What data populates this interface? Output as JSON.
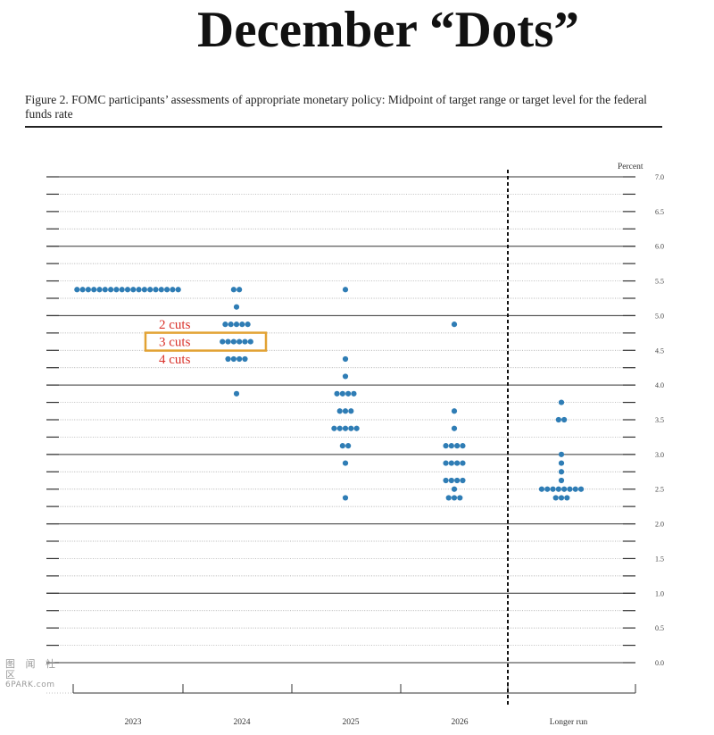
{
  "headline": "December “Dots”",
  "caption": "Figure 2.  FOMC participants’ assessments of appropriate monetary policy:  Midpoint of target range or target level for the federal funds rate",
  "watermark": {
    "glyphs": "图 闻 社 区",
    "site": "6PARK.com"
  },
  "annotations": [
    {
      "label": "2 cuts",
      "y": 4.875,
      "boxed": false
    },
    {
      "label": "3 cuts",
      "y": 4.625,
      "boxed": true
    },
    {
      "label": "4 cuts",
      "y": 4.375,
      "boxed": false
    }
  ],
  "colors": {
    "dot": "#2f7db5",
    "annotation_text": "#d9322b",
    "annotation_box": "#e2a233",
    "axis": "#222222"
  },
  "chart_data": {
    "type": "scatter",
    "ylabel": "Percent",
    "ylim": [
      0,
      7
    ],
    "yticks": [
      "0.0",
      "0.5",
      "1.0",
      "1.5",
      "2.0",
      "2.5",
      "3.0",
      "3.5",
      "4.0",
      "4.5",
      "5.0",
      "5.5",
      "6.0",
      "6.5",
      "7.0"
    ],
    "categories": [
      "2023",
      "2024",
      "2025",
      "2026",
      "Longer run"
    ],
    "divider_after": "2026",
    "grid": "dotted every 0.25, solid every 1.0",
    "dots": {
      "2023": [
        [
          5.375,
          19
        ]
      ],
      "2024": [
        [
          5.375,
          2
        ],
        [
          5.125,
          1
        ],
        [
          4.875,
          5
        ],
        [
          4.625,
          6
        ],
        [
          4.375,
          4
        ],
        [
          3.875,
          1
        ]
      ],
      "2025": [
        [
          5.375,
          1
        ],
        [
          4.375,
          1
        ],
        [
          4.125,
          1
        ],
        [
          3.875,
          4
        ],
        [
          3.625,
          3
        ],
        [
          3.375,
          5
        ],
        [
          3.125,
          2
        ],
        [
          2.875,
          1
        ],
        [
          2.375,
          1
        ]
      ],
      "2026": [
        [
          4.875,
          1
        ],
        [
          3.625,
          1
        ],
        [
          3.375,
          1
        ],
        [
          3.125,
          4
        ],
        [
          2.875,
          4
        ],
        [
          2.625,
          4
        ],
        [
          2.5,
          1
        ],
        [
          2.375,
          3
        ]
      ],
      "Longer run": [
        [
          3.75,
          1
        ],
        [
          3.5,
          2
        ],
        [
          3.0,
          1
        ],
        [
          2.875,
          1
        ],
        [
          2.75,
          1
        ],
        [
          2.625,
          1
        ],
        [
          2.5,
          8
        ],
        [
          2.375,
          3
        ]
      ]
    }
  }
}
